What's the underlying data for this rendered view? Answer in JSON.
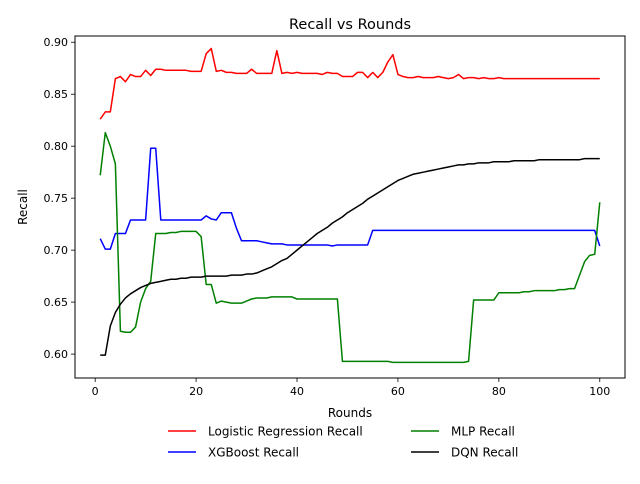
{
  "chart_data": {
    "type": "line",
    "title": "Recall vs Rounds",
    "xlabel": "Rounds",
    "ylabel": "Recall",
    "xlim": [
      -4,
      105
    ],
    "ylim": [
      0.577,
      0.906
    ],
    "xticks": [
      0,
      20,
      40,
      60,
      80,
      100
    ],
    "yticks": [
      0.6,
      0.65,
      0.7,
      0.75,
      0.8,
      0.85,
      0.9
    ],
    "grid": false,
    "legend_position": "bottom-center",
    "series": [
      {
        "name": "Logistic Regression Recall",
        "color": "#ff0000",
        "x": [
          1,
          2,
          3,
          4,
          5,
          6,
          7,
          8,
          9,
          10,
          11,
          12,
          13,
          14,
          15,
          16,
          17,
          18,
          19,
          20,
          21,
          22,
          23,
          24,
          25,
          26,
          27,
          28,
          29,
          30,
          31,
          32,
          33,
          34,
          35,
          36,
          37,
          38,
          39,
          40,
          41,
          42,
          43,
          44,
          45,
          46,
          47,
          48,
          49,
          50,
          51,
          52,
          53,
          54,
          55,
          56,
          57,
          58,
          59,
          60,
          61,
          62,
          63,
          64,
          65,
          66,
          67,
          68,
          69,
          70,
          71,
          72,
          73,
          74,
          75,
          76,
          77,
          78,
          79,
          80,
          81,
          82,
          83,
          84,
          85,
          86,
          87,
          88,
          89,
          90,
          91,
          92,
          93,
          94,
          95,
          96,
          97,
          98,
          99,
          100
        ],
        "values": [
          0.826,
          0.833,
          0.833,
          0.865,
          0.867,
          0.862,
          0.869,
          0.867,
          0.867,
          0.873,
          0.868,
          0.874,
          0.874,
          0.873,
          0.873,
          0.873,
          0.873,
          0.873,
          0.872,
          0.872,
          0.872,
          0.889,
          0.894,
          0.872,
          0.873,
          0.871,
          0.871,
          0.87,
          0.87,
          0.87,
          0.874,
          0.87,
          0.87,
          0.87,
          0.87,
          0.892,
          0.87,
          0.871,
          0.87,
          0.871,
          0.87,
          0.87,
          0.87,
          0.87,
          0.869,
          0.871,
          0.87,
          0.87,
          0.867,
          0.867,
          0.867,
          0.871,
          0.871,
          0.866,
          0.871,
          0.866,
          0.871,
          0.881,
          0.888,
          0.869,
          0.867,
          0.866,
          0.866,
          0.867,
          0.866,
          0.866,
          0.866,
          0.867,
          0.866,
          0.865,
          0.866,
          0.869,
          0.865,
          0.866,
          0.866,
          0.865,
          0.866,
          0.865,
          0.865,
          0.866,
          0.865,
          0.865,
          0.865,
          0.865,
          0.865,
          0.865,
          0.865,
          0.865,
          0.865,
          0.865,
          0.865,
          0.865,
          0.865,
          0.865,
          0.865,
          0.865,
          0.865,
          0.865,
          0.865,
          0.865
        ]
      },
      {
        "name": "XGBoost Recall",
        "color": "#0000ff",
        "x": [
          1,
          2,
          3,
          4,
          5,
          6,
          7,
          8,
          9,
          10,
          11,
          12,
          13,
          14,
          15,
          16,
          17,
          18,
          19,
          20,
          21,
          22,
          23,
          24,
          25,
          26,
          27,
          28,
          29,
          30,
          31,
          32,
          33,
          34,
          35,
          36,
          37,
          38,
          39,
          40,
          41,
          42,
          43,
          44,
          45,
          46,
          47,
          48,
          49,
          50,
          51,
          52,
          53,
          54,
          55,
          56,
          57,
          58,
          59,
          60,
          61,
          62,
          63,
          64,
          65,
          66,
          67,
          68,
          69,
          70,
          71,
          72,
          73,
          74,
          75,
          76,
          77,
          78,
          79,
          80,
          81,
          82,
          83,
          84,
          85,
          86,
          87,
          88,
          89,
          90,
          91,
          92,
          93,
          94,
          95,
          96,
          97,
          98,
          99,
          100
        ],
        "values": [
          0.711,
          0.701,
          0.701,
          0.716,
          0.716,
          0.716,
          0.729,
          0.729,
          0.729,
          0.729,
          0.798,
          0.798,
          0.729,
          0.729,
          0.729,
          0.729,
          0.729,
          0.729,
          0.729,
          0.729,
          0.729,
          0.733,
          0.73,
          0.729,
          0.736,
          0.736,
          0.736,
          0.721,
          0.709,
          0.709,
          0.709,
          0.709,
          0.708,
          0.707,
          0.706,
          0.706,
          0.706,
          0.705,
          0.705,
          0.705,
          0.705,
          0.705,
          0.705,
          0.705,
          0.705,
          0.705,
          0.704,
          0.705,
          0.705,
          0.705,
          0.705,
          0.705,
          0.705,
          0.705,
          0.719,
          0.719,
          0.719,
          0.719,
          0.719,
          0.719,
          0.719,
          0.719,
          0.719,
          0.719,
          0.719,
          0.719,
          0.719,
          0.719,
          0.719,
          0.719,
          0.719,
          0.719,
          0.719,
          0.719,
          0.719,
          0.719,
          0.719,
          0.719,
          0.719,
          0.719,
          0.719,
          0.719,
          0.719,
          0.719,
          0.719,
          0.719,
          0.719,
          0.719,
          0.719,
          0.719,
          0.719,
          0.719,
          0.719,
          0.719,
          0.719,
          0.719,
          0.719,
          0.719,
          0.719,
          0.704
        ]
      },
      {
        "name": "MLP Recall",
        "color": "#008000",
        "x": [
          1,
          2,
          3,
          4,
          5,
          6,
          7,
          8,
          9,
          10,
          11,
          12,
          13,
          14,
          15,
          16,
          17,
          18,
          19,
          20,
          21,
          22,
          23,
          24,
          25,
          26,
          27,
          28,
          29,
          30,
          31,
          32,
          33,
          34,
          35,
          36,
          37,
          38,
          39,
          40,
          41,
          42,
          43,
          44,
          45,
          46,
          47,
          48,
          49,
          50,
          51,
          52,
          53,
          54,
          55,
          56,
          57,
          58,
          59,
          60,
          61,
          62,
          63,
          64,
          65,
          66,
          67,
          68,
          69,
          70,
          71,
          72,
          73,
          74,
          75,
          76,
          77,
          78,
          79,
          80,
          81,
          82,
          83,
          84,
          85,
          86,
          87,
          88,
          89,
          90,
          91,
          92,
          93,
          94,
          95,
          96,
          97,
          98,
          99,
          100
        ],
        "values": [
          0.772,
          0.813,
          0.8,
          0.783,
          0.622,
          0.621,
          0.621,
          0.626,
          0.65,
          0.663,
          0.67,
          0.716,
          0.716,
          0.716,
          0.717,
          0.717,
          0.718,
          0.718,
          0.718,
          0.718,
          0.713,
          0.667,
          0.667,
          0.649,
          0.651,
          0.65,
          0.649,
          0.649,
          0.649,
          0.651,
          0.653,
          0.654,
          0.654,
          0.654,
          0.655,
          0.655,
          0.655,
          0.655,
          0.655,
          0.653,
          0.653,
          0.653,
          0.653,
          0.653,
          0.653,
          0.653,
          0.653,
          0.653,
          0.593,
          0.593,
          0.593,
          0.593,
          0.593,
          0.593,
          0.593,
          0.593,
          0.593,
          0.593,
          0.592,
          0.592,
          0.592,
          0.592,
          0.592,
          0.592,
          0.592,
          0.592,
          0.592,
          0.592,
          0.592,
          0.592,
          0.592,
          0.592,
          0.592,
          0.593,
          0.652,
          0.652,
          0.652,
          0.652,
          0.652,
          0.659,
          0.659,
          0.659,
          0.659,
          0.659,
          0.66,
          0.66,
          0.661,
          0.661,
          0.661,
          0.661,
          0.661,
          0.662,
          0.662,
          0.663,
          0.663,
          0.676,
          0.689,
          0.695,
          0.696,
          0.746
        ]
      },
      {
        "name": "DQN Recall",
        "color": "#000000",
        "x": [
          1,
          2,
          3,
          4,
          5,
          6,
          7,
          8,
          9,
          10,
          11,
          12,
          13,
          14,
          15,
          16,
          17,
          18,
          19,
          20,
          21,
          22,
          23,
          24,
          25,
          26,
          27,
          28,
          29,
          30,
          31,
          32,
          33,
          34,
          35,
          36,
          37,
          38,
          39,
          40,
          41,
          42,
          43,
          44,
          45,
          46,
          47,
          48,
          49,
          50,
          51,
          52,
          53,
          54,
          55,
          56,
          57,
          58,
          59,
          60,
          61,
          62,
          63,
          64,
          65,
          66,
          67,
          68,
          69,
          70,
          71,
          72,
          73,
          74,
          75,
          76,
          77,
          78,
          79,
          80,
          81,
          82,
          83,
          84,
          85,
          86,
          87,
          88,
          89,
          90,
          91,
          92,
          93,
          94,
          95,
          96,
          97,
          98,
          99,
          100
        ],
        "values": [
          0.599,
          0.599,
          0.627,
          0.64,
          0.648,
          0.654,
          0.658,
          0.661,
          0.664,
          0.666,
          0.668,
          0.669,
          0.67,
          0.671,
          0.672,
          0.672,
          0.673,
          0.673,
          0.674,
          0.674,
          0.674,
          0.675,
          0.675,
          0.675,
          0.675,
          0.675,
          0.676,
          0.676,
          0.676,
          0.677,
          0.677,
          0.678,
          0.68,
          0.682,
          0.684,
          0.687,
          0.69,
          0.692,
          0.696,
          0.7,
          0.704,
          0.708,
          0.712,
          0.716,
          0.719,
          0.722,
          0.726,
          0.729,
          0.732,
          0.736,
          0.739,
          0.742,
          0.745,
          0.749,
          0.752,
          0.755,
          0.758,
          0.761,
          0.764,
          0.767,
          0.769,
          0.771,
          0.773,
          0.774,
          0.775,
          0.776,
          0.777,
          0.778,
          0.779,
          0.78,
          0.781,
          0.782,
          0.782,
          0.783,
          0.783,
          0.784,
          0.784,
          0.784,
          0.785,
          0.785,
          0.785,
          0.785,
          0.786,
          0.786,
          0.786,
          0.786,
          0.786,
          0.787,
          0.787,
          0.787,
          0.787,
          0.787,
          0.787,
          0.787,
          0.787,
          0.787,
          0.788,
          0.788,
          0.788,
          0.788
        ]
      }
    ]
  }
}
